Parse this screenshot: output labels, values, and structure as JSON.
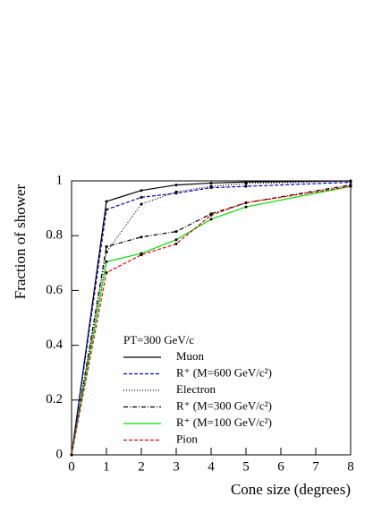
{
  "chart_data": {
    "type": "line",
    "x_label": "Cone size (degrees)",
    "y_label": "Fraction of shower",
    "legend_title": "PT=300 GeV/c",
    "x": [
      0,
      1,
      2,
      3,
      4,
      5,
      8
    ],
    "series": [
      {
        "name": "Muon",
        "color": "#000000",
        "dash": "solid",
        "values": [
          0,
          0.925,
          0.965,
          0.985,
          0.992,
          0.996,
          1.0
        ]
      },
      {
        "name": "R⁺ (M=600 GeV/c²)",
        "color": "#0000cc",
        "dash": "dashed",
        "values": [
          0,
          0.895,
          0.94,
          0.955,
          0.975,
          0.98,
          0.995
        ]
      },
      {
        "name": "Electron",
        "color": "#000000",
        "dash": "dotted",
        "values": [
          0,
          0.74,
          0.915,
          0.96,
          0.98,
          0.99,
          1.0
        ]
      },
      {
        "name": "R⁺ (M=300 GeV/c²)",
        "color": "#000000",
        "dash": "dashdot",
        "values": [
          0,
          0.76,
          0.795,
          0.815,
          0.88,
          0.92,
          0.985
        ]
      },
      {
        "name": "R⁺ (M=100 GeV/c²)",
        "color": "#00dd00",
        "dash": "solid",
        "values": [
          0,
          0.705,
          0.735,
          0.785,
          0.86,
          0.905,
          0.98
        ]
      },
      {
        "name": "Pion",
        "color": "#ee0000",
        "dash": "dashed",
        "values": [
          0,
          0.665,
          0.73,
          0.77,
          0.875,
          0.92,
          0.98
        ]
      }
    ],
    "xlim": [
      0,
      8
    ],
    "xticks": [
      0,
      1,
      2,
      3,
      4,
      5,
      6,
      7,
      8
    ],
    "ylim": [
      0,
      1
    ],
    "yticks": [
      0,
      0.2,
      0.4,
      0.6,
      0.8,
      1
    ]
  }
}
